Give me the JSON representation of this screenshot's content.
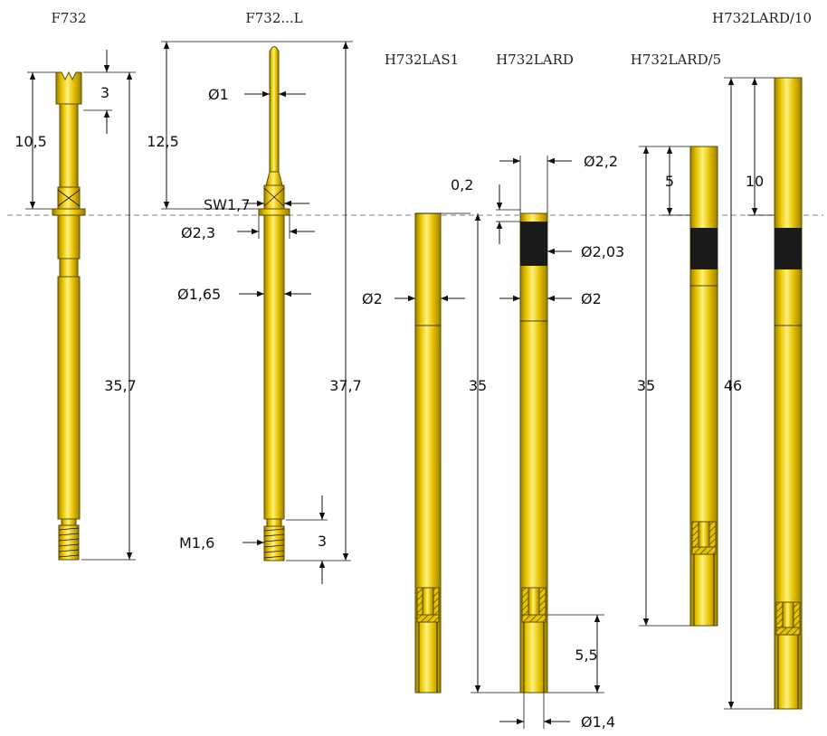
{
  "titles": {
    "f732": "F732",
    "f732l": "F732...L",
    "h732las1": "H732LAS1",
    "h732lard": "H732LARD",
    "h732lard5": "H732LARD/5",
    "h732lard10": "H732LARD/10"
  },
  "dims": {
    "f732_len_top": "10,5",
    "f732_head": "3",
    "f732_total": "35,7",
    "f732l_len_top": "12,5",
    "f732l_tip_dia": "Ø1",
    "f732l_sw": "SW1,7",
    "f732l_collar_dia": "Ø2,3",
    "f732l_shaft_dia": "Ø1,65",
    "f732l_total": "37,7",
    "f732l_thread": "M1,6",
    "f732l_thread_len": "3",
    "las1_dia": "Ø2",
    "las1_len": "35",
    "lard_offset": "0,2",
    "lard_top_dia": "Ø2,2",
    "lard_band_dia": "Ø2,03",
    "lard_dia": "Ø2",
    "lard_len": "35",
    "lard_bottom_len": "5,5",
    "lard_bottom_dia": "Ø1,4",
    "lard5_top": "5",
    "lard5_len": "35",
    "lard10_top": "10",
    "lard10_len": "46"
  },
  "colors": {
    "gold_light": "#fff27a",
    "gold_mid": "#e8c400",
    "gold_dark": "#a88a00",
    "band": "#1a1a1a",
    "reference_line": "#9a9a9a"
  }
}
